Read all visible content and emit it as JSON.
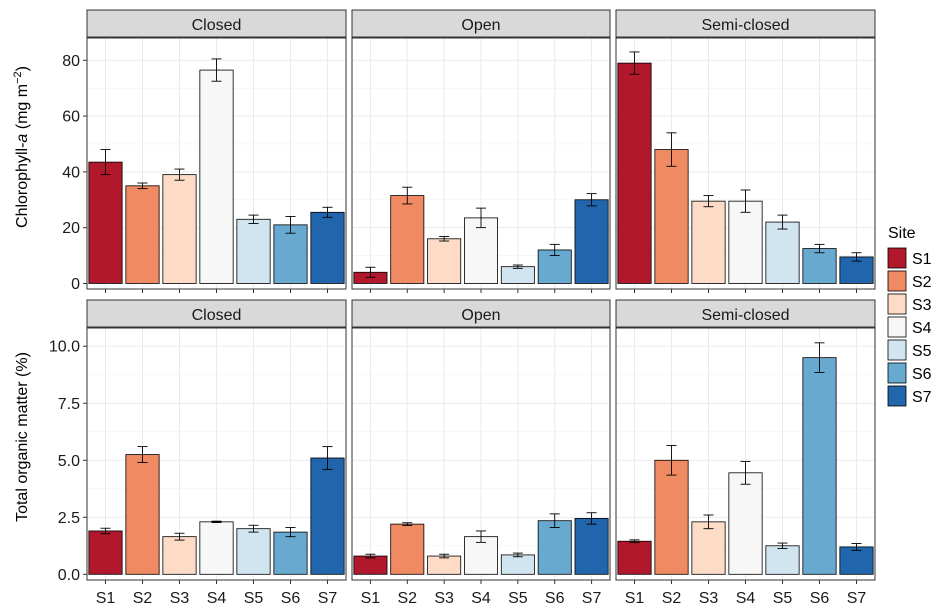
{
  "chart_data": {
    "type": "bar",
    "facet_columns": [
      "Closed",
      "Open",
      "Semi-closed"
    ],
    "categories": [
      "S1",
      "S2",
      "S3",
      "S4",
      "S5",
      "S6",
      "S7"
    ],
    "colors": [
      "#b2182b",
      "#ef8a62",
      "#fddbc7",
      "#f7f7f7",
      "#d1e5f0",
      "#67a9cf",
      "#2166ac"
    ],
    "grid": true,
    "legend": {
      "title": "Site",
      "position": "right",
      "items": [
        "S1",
        "S2",
        "S3",
        "S4",
        "S5",
        "S6",
        "S7"
      ]
    },
    "rows": [
      {
        "ylabel_prefix": "Chlorophyll-",
        "ylabel_italic": "a",
        "ylabel_unit": " (mg m",
        "ylabel_sup": "−2",
        "ylabel_close": ")",
        "ylim": [
          -2,
          88
        ],
        "yticks": [
          "0",
          "20",
          "40",
          "60",
          "80"
        ],
        "ytick_values": [
          0,
          20,
          40,
          60,
          80
        ],
        "panels": [
          {
            "facet": "Closed",
            "values": [
              43.5,
              35,
              39,
              76.5,
              23,
              21,
              25.5
            ],
            "errors": [
              4.5,
              1,
              2,
              4,
              1.5,
              3,
              1.8
            ]
          },
          {
            "facet": "Open",
            "values": [
              4,
              31.5,
              16,
              23.5,
              6,
              12,
              30
            ],
            "errors": [
              1.8,
              3,
              0.8,
              3.5,
              0.6,
              2,
              2.2
            ]
          },
          {
            "facet": "Semi-closed",
            "values": [
              79,
              48,
              29.5,
              29.5,
              22,
              12.5,
              9.5
            ],
            "errors": [
              4,
              6,
              2,
              4,
              2.5,
              1.5,
              1.5
            ]
          }
        ]
      },
      {
        "ylabel": "Total organic matter (%)",
        "ylim": [
          -0.25,
          10.8
        ],
        "yticks": [
          "0.0",
          "2.5",
          "5.0",
          "7.5",
          "10.0"
        ],
        "ytick_values": [
          0,
          2.5,
          5,
          7.5,
          10
        ],
        "panels": [
          {
            "facet": "Closed",
            "values": [
              1.9,
              5.25,
              1.65,
              2.3,
              2,
              1.85,
              5.1
            ],
            "errors": [
              0.12,
              0.35,
              0.15,
              0.03,
              0.15,
              0.2,
              0.5
            ]
          },
          {
            "facet": "Open",
            "values": [
              0.8,
              2.2,
              0.8,
              1.65,
              0.85,
              2.35,
              2.45
            ],
            "errors": [
              0.08,
              0.06,
              0.08,
              0.25,
              0.08,
              0.3,
              0.25
            ]
          },
          {
            "facet": "Semi-closed",
            "values": [
              1.45,
              5,
              2.3,
              4.45,
              1.25,
              9.5,
              1.2
            ],
            "errors": [
              0.06,
              0.65,
              0.3,
              0.5,
              0.12,
              0.65,
              0.15
            ]
          }
        ]
      }
    ]
  }
}
